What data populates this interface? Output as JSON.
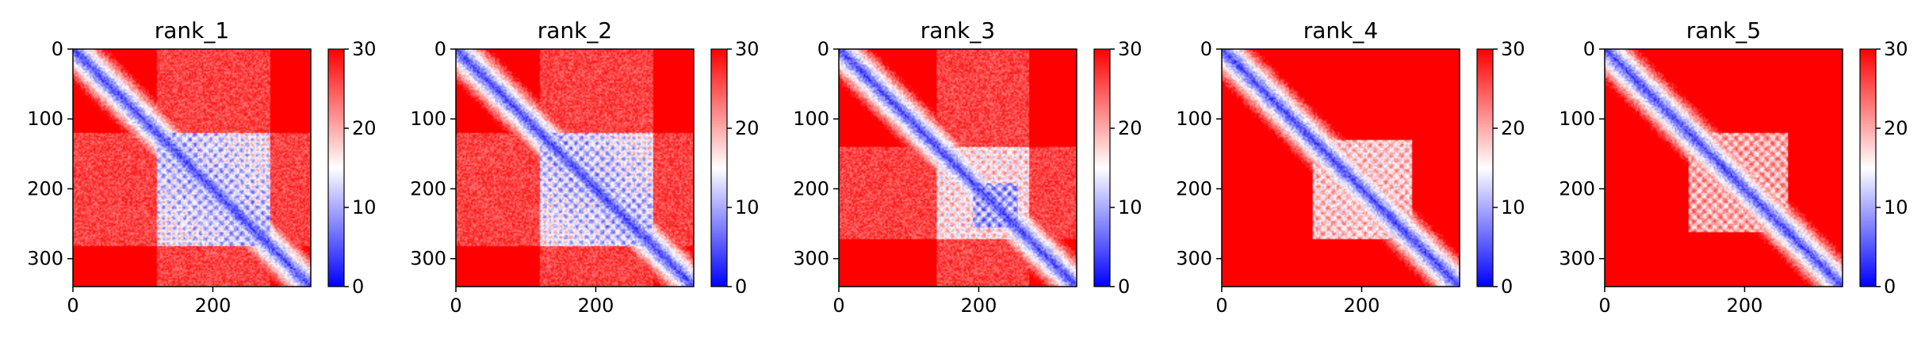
{
  "chart_data": {
    "type": "heatmap",
    "colormap": {
      "name": "bwr",
      "stops": [
        "#0000ff",
        "#ffffff",
        "#ff0000"
      ],
      "range": [
        0,
        30
      ],
      "colorbar_ticks": [
        0,
        10,
        20,
        30
      ]
    },
    "matrix_size": 340,
    "x_ticks": [
      0,
      200
    ],
    "y_ticks": [
      0,
      100,
      200,
      300
    ],
    "colors": {
      "diagonal": "#0000ff",
      "background": "#ff0000"
    },
    "panels": [
      {
        "title": "rank_1",
        "block": [
          120,
          280
        ],
        "pattern": "strong"
      },
      {
        "title": "rank_2",
        "block": [
          120,
          280
        ],
        "pattern": "strong"
      },
      {
        "title": "rank_3",
        "block": [
          140,
          270
        ],
        "pattern": "lower"
      },
      {
        "title": "rank_4",
        "block": [
          130,
          270
        ],
        "pattern": "weak"
      },
      {
        "title": "rank_5",
        "block": [
          120,
          260
        ],
        "pattern": "faint"
      }
    ]
  }
}
